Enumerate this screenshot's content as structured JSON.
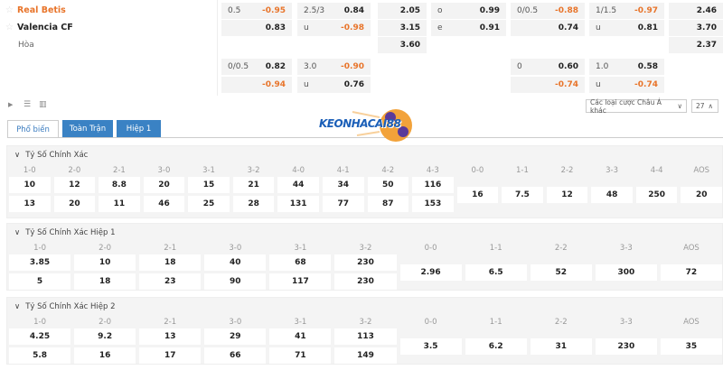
{
  "match": {
    "home": "Real Betis",
    "away": "Valencia CF",
    "draw": "Hòa",
    "home_color": "#e8742a"
  },
  "odds_rows": [
    [
      [
        "0.5",
        "-0.95"
      ],
      [
        "2.5/3",
        "0.84"
      ],
      [
        "",
        "2.05"
      ],
      [
        "o",
        "0.99"
      ],
      [
        "0/0.5",
        "-0.88"
      ],
      [
        "1/1.5",
        "-0.97"
      ],
      [
        "",
        "2.46"
      ]
    ],
    [
      [
        "",
        "0.83"
      ],
      [
        "u",
        "-0.98"
      ],
      [
        "",
        "3.15"
      ],
      [
        "e",
        "0.91"
      ],
      [
        "",
        "0.74"
      ],
      [
        "u",
        "0.81"
      ],
      [
        "",
        "3.70"
      ]
    ],
    [
      null,
      null,
      [
        "",
        "3.60"
      ],
      null,
      null,
      null,
      [
        "",
        "2.37"
      ]
    ],
    [
      [
        "0/0.5",
        "0.82"
      ],
      [
        "3.0",
        "-0.90"
      ],
      null,
      null,
      [
        "0",
        "0.60"
      ],
      [
        "1.0",
        "0.58"
      ],
      null
    ],
    [
      [
        "",
        "-0.94"
      ],
      [
        "u",
        "0.76"
      ],
      null,
      null,
      [
        "",
        "-0.74"
      ],
      [
        "u",
        "-0.74"
      ],
      null
    ]
  ],
  "toolbar": {
    "icons": [
      "play-icon",
      "list-icon",
      "bar-chart-icon"
    ],
    "market_select": "Các loại cược Châu Á khác",
    "count_select": "27"
  },
  "logo_text": "KEONHACAI88",
  "tabs": [
    {
      "label": "Phổ biến",
      "active": true
    },
    {
      "label": "Toàn Trận",
      "active": false
    },
    {
      "label": "Hiệp 1",
      "active": false
    }
  ],
  "colors": {
    "accent": "#3a82c4",
    "negative": "#e8742a"
  },
  "sections": [
    {
      "title": "Tỷ Số Chính Xác",
      "columns": [
        {
          "label": "1-0",
          "values": [
            "10",
            "13"
          ]
        },
        {
          "label": "2-0",
          "values": [
            "12",
            "20"
          ]
        },
        {
          "label": "2-1",
          "values": [
            "8.8",
            "11"
          ]
        },
        {
          "label": "3-0",
          "values": [
            "20",
            "46"
          ]
        },
        {
          "label": "3-1",
          "values": [
            "15",
            "25"
          ]
        },
        {
          "label": "3-2",
          "values": [
            "21",
            "28"
          ]
        },
        {
          "label": "4-0",
          "values": [
            "44",
            "131"
          ]
        },
        {
          "label": "4-1",
          "values": [
            "34",
            "77"
          ]
        },
        {
          "label": "4-2",
          "values": [
            "50",
            "87"
          ]
        },
        {
          "label": "4-3",
          "values": [
            "116",
            "153"
          ]
        },
        {
          "label": "0-0",
          "values": [
            "16"
          ]
        },
        {
          "label": "1-1",
          "values": [
            "7.5"
          ]
        },
        {
          "label": "2-2",
          "values": [
            "12"
          ]
        },
        {
          "label": "3-3",
          "values": [
            "48"
          ]
        },
        {
          "label": "4-4",
          "values": [
            "250"
          ]
        },
        {
          "label": "AOS",
          "values": [
            "20"
          ]
        }
      ]
    },
    {
      "title": "Tỷ Số Chính Xác Hiệp 1",
      "columns": [
        {
          "label": "1-0",
          "values": [
            "3.85",
            "5"
          ]
        },
        {
          "label": "2-0",
          "values": [
            "10",
            "18"
          ]
        },
        {
          "label": "2-1",
          "values": [
            "18",
            "23"
          ]
        },
        {
          "label": "3-0",
          "values": [
            "40",
            "90"
          ]
        },
        {
          "label": "3-1",
          "values": [
            "68",
            "117"
          ]
        },
        {
          "label": "3-2",
          "values": [
            "230",
            "230"
          ]
        },
        {
          "label": "0-0",
          "values": [
            "2.96"
          ]
        },
        {
          "label": "1-1",
          "values": [
            "6.5"
          ]
        },
        {
          "label": "2-2",
          "values": [
            "52"
          ]
        },
        {
          "label": "3-3",
          "values": [
            "300"
          ]
        },
        {
          "label": "AOS",
          "values": [
            "72"
          ]
        }
      ]
    },
    {
      "title": "Tỷ Số Chính Xác Hiệp 2",
      "columns": [
        {
          "label": "1-0",
          "values": [
            "4.25",
            "5.8"
          ]
        },
        {
          "label": "2-0",
          "values": [
            "9.2",
            "16"
          ]
        },
        {
          "label": "2-1",
          "values": [
            "13",
            "17"
          ]
        },
        {
          "label": "3-0",
          "values": [
            "29",
            "66"
          ]
        },
        {
          "label": "3-1",
          "values": [
            "41",
            "71"
          ]
        },
        {
          "label": "3-2",
          "values": [
            "113",
            "149"
          ]
        },
        {
          "label": "0-0",
          "values": [
            "3.5"
          ]
        },
        {
          "label": "1-1",
          "values": [
            "6.2"
          ]
        },
        {
          "label": "2-2",
          "values": [
            "31"
          ]
        },
        {
          "label": "3-3",
          "values": [
            "230"
          ]
        },
        {
          "label": "AOS",
          "values": [
            "35"
          ]
        }
      ]
    }
  ]
}
